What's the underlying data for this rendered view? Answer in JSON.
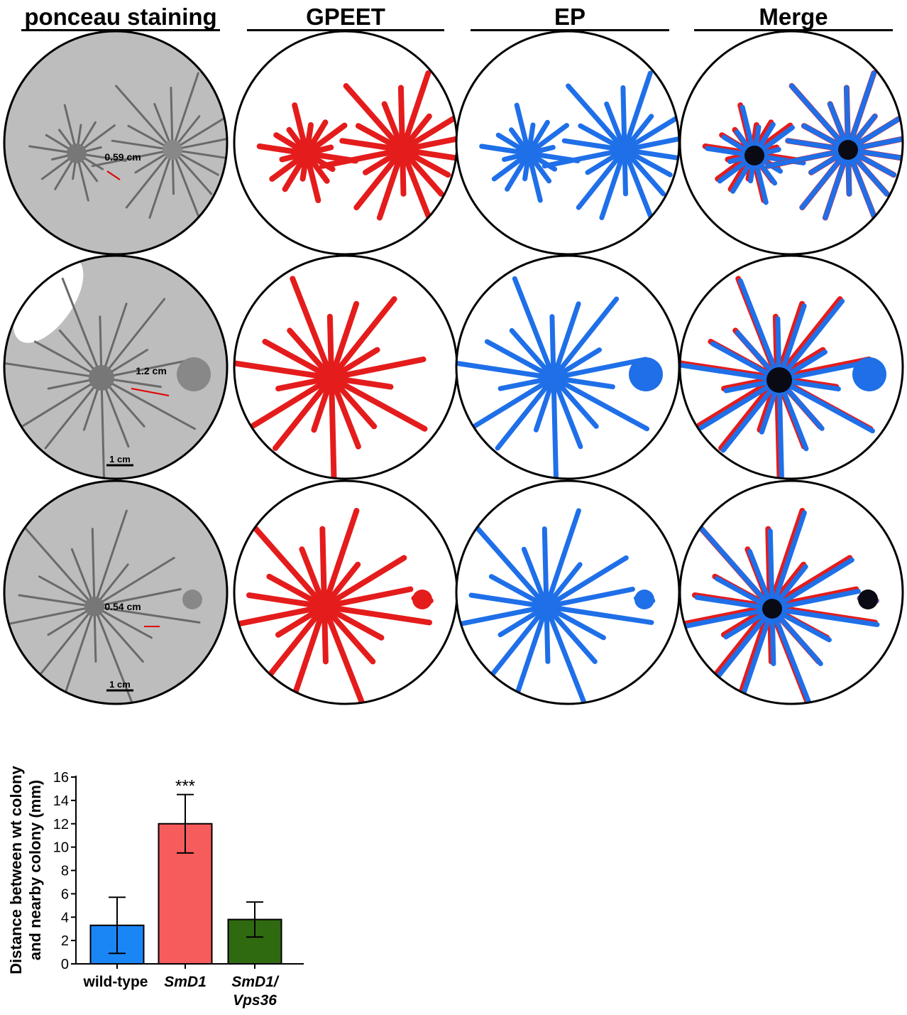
{
  "columns": [
    "ponceau staining",
    "GPEET",
    "EP",
    "Merge"
  ],
  "rows": [
    {
      "distance_label": "0.59 cm",
      "scale_bar": ""
    },
    {
      "distance_label": "1.2 cm",
      "scale_bar": "1 cm"
    },
    {
      "distance_label": "0.54 cm",
      "scale_bar": "1 cm"
    }
  ],
  "colors": {
    "gpeet": "#e41c1c",
    "ep": "#1f6fe8",
    "merge_core": "#0a0a14",
    "ponceau_bg": "#bdbdbd",
    "ponceau_colony": "#6a6a6a"
  },
  "chart_data": {
    "type": "bar",
    "categories": [
      "wild-type",
      "SmD1",
      "SmD1/\nVps36"
    ],
    "values": [
      3.3,
      12.0,
      3.8
    ],
    "errors": [
      2.4,
      2.5,
      1.5
    ],
    "colors": [
      "#1a86f6",
      "#f75c5c",
      "#2f6a10"
    ],
    "ylabel": "Distance between wt colony\nand nearby colony (mm)",
    "ylim": [
      0,
      16
    ],
    "yticks": [
      0,
      2,
      4,
      6,
      8,
      10,
      12,
      14,
      16
    ],
    "annotations": [
      {
        "category": "SmD1",
        "text": "***"
      }
    ]
  }
}
